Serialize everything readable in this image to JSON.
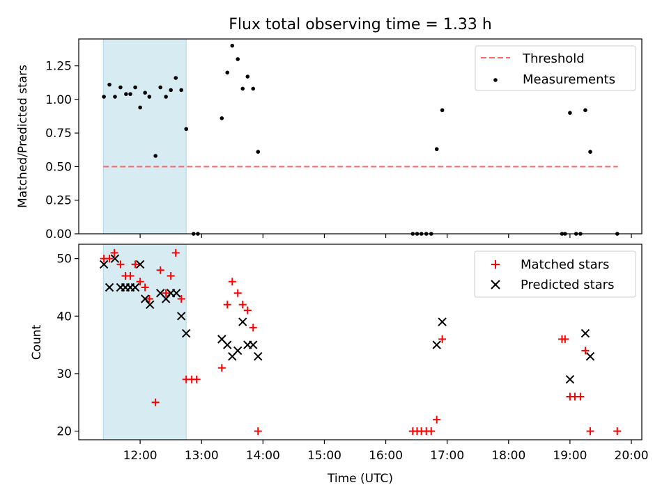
{
  "title": "Flux total observing time = 1.33 h",
  "x_axis_label": "Time (UTC)",
  "x_tick_labels": [
    "12:00",
    "13:00",
    "14:00",
    "15:00",
    "16:00",
    "17:00",
    "18:00",
    "19:00",
    "20:00"
  ],
  "colors": {
    "highlight_span": "#add8e6",
    "threshold": "#ff6666",
    "measurements": "#000000",
    "matched": "#ff0000",
    "predicted": "#000000"
  },
  "chart_data": [
    {
      "type": "scatter",
      "title": "Flux total observing time = 1.33 h",
      "ylabel": "Matched/Predicted stars",
      "xlabel": "",
      "x_unit": "hours (UTC)",
      "xlim": [
        11.0,
        20.17
      ],
      "ylim": [
        0,
        1.45
      ],
      "y_ticks": [
        0.0,
        0.25,
        0.5,
        0.75,
        1.0,
        1.25
      ],
      "y_tick_labels": [
        "0.00",
        "0.25",
        "0.50",
        "0.75",
        "1.00",
        "1.25"
      ],
      "highlight_span": [
        11.4,
        12.75
      ],
      "threshold": {
        "name": "Threshold",
        "y": 0.5,
        "x_range": [
          11.4,
          19.78
        ]
      },
      "legend_position": "top-right",
      "series": [
        {
          "name": "Measurements",
          "x": [
            11.41,
            11.5,
            11.59,
            11.68,
            11.77,
            11.84,
            11.92,
            12.0,
            12.08,
            12.15,
            12.25,
            12.33,
            12.42,
            12.5,
            12.58,
            12.67,
            12.75,
            12.87,
            12.94,
            13.33,
            13.42,
            13.5,
            13.59,
            13.67,
            13.75,
            13.84,
            13.92,
            16.44,
            16.51,
            16.58,
            16.66,
            16.74,
            16.83,
            16.92,
            18.87,
            18.92,
            19.0,
            19.1,
            19.17,
            19.25,
            19.33,
            19.77
          ],
          "y": [
            1.02,
            1.11,
            1.02,
            1.09,
            1.04,
            1.04,
            1.09,
            0.94,
            1.05,
            1.02,
            0.58,
            1.09,
            1.02,
            1.07,
            1.16,
            1.07,
            0.78,
            0.0,
            0.0,
            0.86,
            1.2,
            1.4,
            1.3,
            1.08,
            1.17,
            1.08,
            0.61,
            0.0,
            0.0,
            0.0,
            0.0,
            0.0,
            0.63,
            0.92,
            0.0,
            0.0,
            0.9,
            0.0,
            0.0,
            0.92,
            0.61,
            0.0
          ]
        }
      ]
    },
    {
      "type": "scatter",
      "title": "",
      "ylabel": "Count",
      "xlabel": "Time (UTC)",
      "x_unit": "hours (UTC)",
      "xlim": [
        11.0,
        20.17
      ],
      "ylim": [
        18.5,
        52.5
      ],
      "y_ticks": [
        20,
        30,
        40,
        50
      ],
      "y_tick_labels": [
        "20",
        "30",
        "40",
        "50"
      ],
      "highlight_span": [
        11.4,
        12.75
      ],
      "legend_position": "top-right",
      "series": [
        {
          "name": "Matched stars",
          "x": [
            11.41,
            11.5,
            11.58,
            11.68,
            11.76,
            11.84,
            11.92,
            12.0,
            12.08,
            12.15,
            12.25,
            12.33,
            12.42,
            12.5,
            12.58,
            12.67,
            12.75,
            12.84,
            12.92,
            13.33,
            13.42,
            13.5,
            13.59,
            13.67,
            13.75,
            13.84,
            13.92,
            16.44,
            16.51,
            16.58,
            16.66,
            16.74,
            16.83,
            16.92,
            18.87,
            18.92,
            19.0,
            19.08,
            19.17,
            19.25,
            19.33,
            19.77
          ],
          "y": [
            50,
            50,
            51,
            49,
            47,
            47,
            49,
            46,
            45,
            43,
            25,
            48,
            44,
            47,
            51,
            43,
            29,
            29,
            29,
            31,
            42,
            46,
            44,
            42,
            41,
            38,
            20,
            20,
            20,
            20,
            20,
            20,
            22,
            36,
            36,
            36,
            26,
            26,
            26,
            34,
            20,
            20
          ]
        },
        {
          "name": "Predicted stars",
          "x": [
            11.41,
            11.5,
            11.59,
            11.68,
            11.76,
            11.84,
            11.92,
            12.0,
            12.08,
            12.16,
            12.33,
            12.42,
            12.5,
            12.59,
            12.67,
            12.75,
            13.33,
            13.42,
            13.5,
            13.59,
            13.67,
            13.75,
            13.84,
            13.92,
            16.83,
            16.92,
            19.0,
            19.25,
            19.33
          ],
          "y": [
            49,
            45,
            50,
            45,
            45,
            45,
            45,
            49,
            43,
            42,
            44,
            43,
            44,
            44,
            40,
            37,
            36,
            35,
            33,
            34,
            39,
            35,
            35,
            33,
            35,
            39,
            29,
            37,
            33
          ]
        }
      ]
    }
  ]
}
